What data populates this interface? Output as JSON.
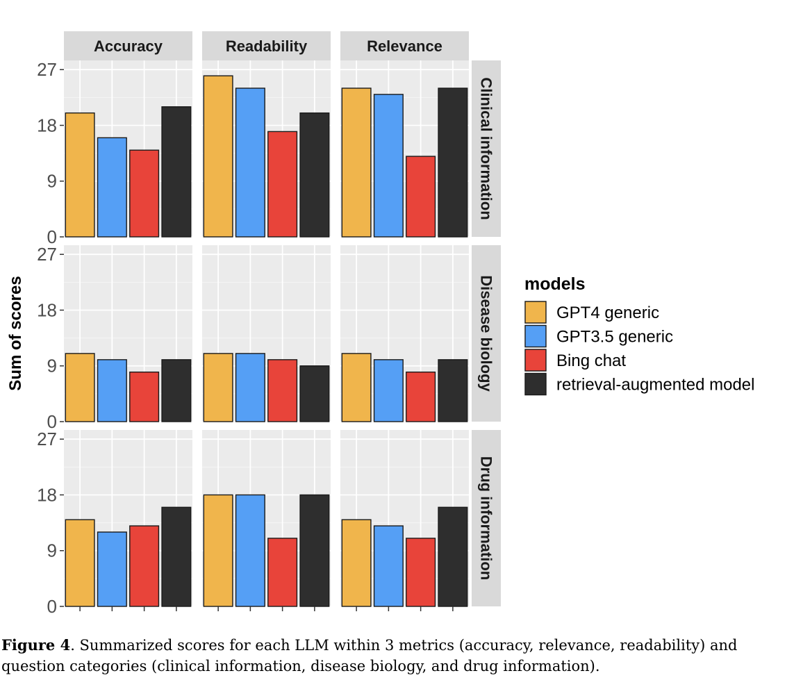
{
  "chart_data": {
    "type": "bar",
    "facet_columns": [
      "Accuracy",
      "Readability",
      "Relevance"
    ],
    "facet_rows": [
      "Clinical information",
      "Disease biology",
      "Drug information"
    ],
    "ylabel": "Sum of scores",
    "xlabel": "",
    "ylim": [
      0,
      27
    ],
    "yticks": [
      0,
      9,
      18,
      27
    ],
    "legend": {
      "title": "models",
      "position": "right",
      "entries": [
        "GPT4 generic",
        "GPT3.5 generic",
        "Bing chat",
        "retrieval-augmented model"
      ]
    },
    "colors": [
      "#F0B54C",
      "#559FF5",
      "#E8443A",
      "#2E2E2E"
    ],
    "values": {
      "Clinical information": {
        "Accuracy": [
          20,
          16,
          14,
          21
        ],
        "Readability": [
          26,
          24,
          17,
          20
        ],
        "Relevance": [
          24,
          23,
          13,
          24
        ]
      },
      "Disease biology": {
        "Accuracy": [
          11,
          10,
          8,
          10
        ],
        "Readability": [
          11,
          11,
          10,
          9
        ],
        "Relevance": [
          11,
          10,
          8,
          10
        ]
      },
      "Drug information": {
        "Accuracy": [
          14,
          12,
          13,
          16
        ],
        "Readability": [
          18,
          18,
          11,
          18
        ],
        "Relevance": [
          14,
          13,
          11,
          16
        ]
      }
    }
  },
  "caption": {
    "label": "Figure 4",
    "text": ". Summarized scores for each LLM within 3 metrics (accuracy, relevance, readability) and question categories (clinical information, disease biology, and drug information)."
  }
}
